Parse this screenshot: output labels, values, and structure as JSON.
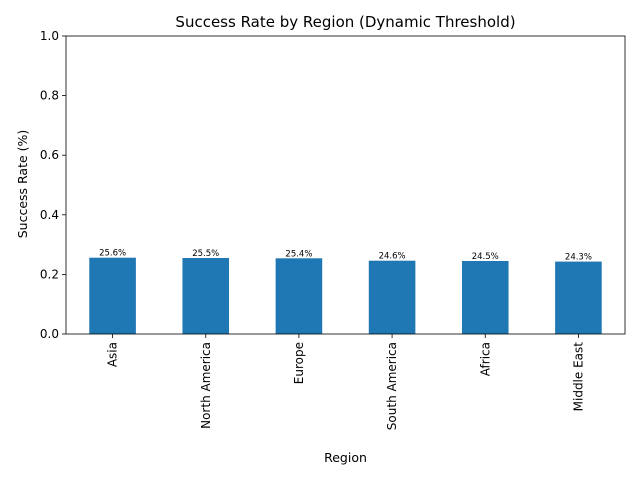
{
  "chart_data": {
    "type": "bar",
    "title": "Success Rate by Region (Dynamic Threshold)",
    "xlabel": "Region",
    "ylabel": "Success Rate (%)",
    "categories": [
      "Asia",
      "North America",
      "Europe",
      "South America",
      "Africa",
      "Middle East"
    ],
    "values": [
      0.256,
      0.255,
      0.254,
      0.246,
      0.245,
      0.243
    ],
    "data_labels": [
      "25.6%",
      "25.5%",
      "25.4%",
      "24.6%",
      "24.5%",
      "24.3%"
    ],
    "ylim": [
      0,
      1.0
    ],
    "yticks": [
      0.0,
      0.2,
      0.4,
      0.6,
      0.8,
      1.0
    ],
    "ytick_labels": [
      "0.0",
      "0.2",
      "0.4",
      "0.6",
      "0.8",
      "1.0"
    ],
    "grid": false,
    "bar_color": "#1f77b4"
  }
}
